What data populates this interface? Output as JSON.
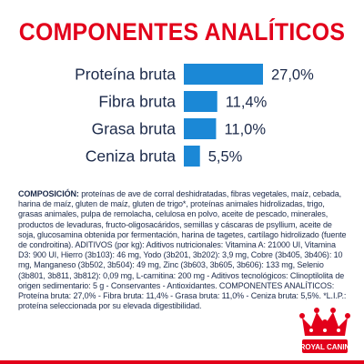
{
  "title": "COMPONENTES ANALÍTICOS",
  "chart_data": {
    "type": "bar",
    "orientation": "horizontal",
    "categories": [
      "Proteína bruta",
      "Fibra bruta",
      "Grasa bruta",
      "Ceniza bruta"
    ],
    "values": [
      27.0,
      11.4,
      11.0,
      5.5
    ],
    "value_labels": [
      "27,0%",
      "11,4%",
      "11,0%",
      "5,5%"
    ],
    "bar_color": "#1b88d6",
    "title": "COMPONENTES ANALÍTICOS",
    "xlabel": "",
    "ylabel": "",
    "grid": false
  },
  "composition": {
    "heading": "COMPOSICIÓN:",
    "text": " proteínas de ave de corral deshidratadas, fibras vegetales, maíz, cebada, harina de maíz, gluten de maíz, gluten de trigo*, proteínas animales hidrolizadas, trigo, grasas animales, pulpa de remolacha, celulosa en polvo, aceite de pescado, minerales, productos de levaduras, fructo-oligosacáridos, semillas y cáscaras de psyllium, aceite de soja, glucosamina obtenida por fermentación, harina de tagetes, cartílago hidrolizado (fuente de condroitina). ADITIVOS (por kg): Aditivos nutricionales: Vitamina A: 21000 UI, Vitamina D3: 900 UI, Hierro (3b103): 46 mg, Yodo (3b201, 3b202): 3,9 mg, Cobre (3b405, 3b406): 10 mg, Manganeso (3b502, 3b504): 49 mg, Zinc (3b603, 3b605, 3b606): 133 mg, Selenio (3b801, 3b811, 3b812): 0,09 mg, L-carnitina: 200 mg - Aditivos tecnológicos: Clinoptilolita de origen sedimentario: 5 g - Conservantes - Antioxidantes. COMPONENTES ANALÍTICOS: Proteína bruta: 27,0% - Fibra bruta: 11,4% - Grasa bruta: 11,0% - Ceniza bruta: 5,5%. *L.I.P.: proteína seleccionada por su elevada digestibilidad."
  },
  "colors": {
    "title_red": "#e2001a",
    "text_navy": "#1c2a4a",
    "bar_blue": "#1b88d6"
  },
  "logo": {
    "icon": "royal-canin-crown-icon",
    "wordmark": "ROYAL CANIN"
  }
}
